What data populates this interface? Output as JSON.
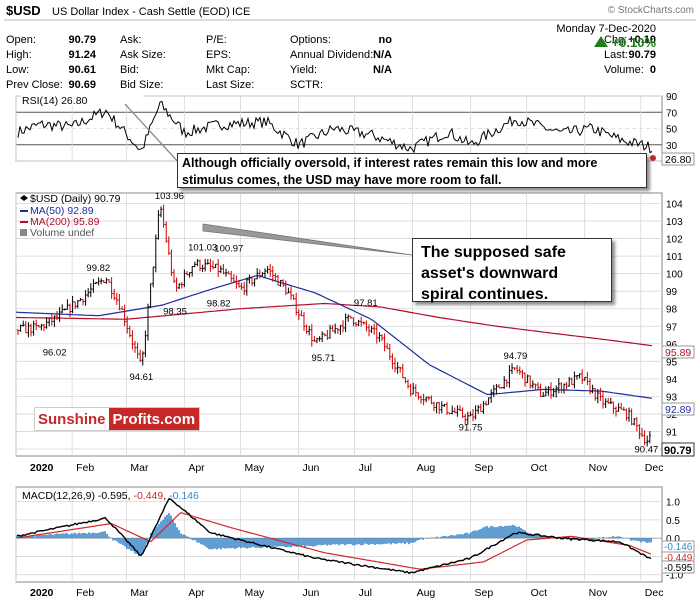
{
  "header": {
    "symbol": "$USD",
    "name": "US Dollar Index - Cash Settle (EOD)",
    "exchange": "ICE",
    "copyright": "© StockCharts.com",
    "date": "Monday  7-Dec-2020",
    "change_pct": "+0.10%",
    "rows": [
      [
        "Open:",
        "90.79",
        "Ask:",
        "",
        "P/E:",
        "",
        "Options:",
        "no",
        "Chg:",
        "+0.10"
      ],
      [
        "High:",
        "91.24",
        "Ask Size:",
        "",
        "EPS:",
        "",
        "Annual Dividend:",
        "N/A",
        "Last:",
        "90.79"
      ],
      [
        "Low:",
        "90.61",
        "Bid:",
        "",
        "Mkt Cap:",
        "",
        "Yield:",
        "N/A",
        "Volume:",
        "0"
      ],
      [
        "Prev Close:",
        "90.69",
        "Bid Size:",
        "",
        "Last Size:",
        "",
        "SCTR:",
        "",
        "",
        ""
      ]
    ]
  },
  "rsi_panel": {
    "label": "RSI(14) 26.80",
    "last_value": "26.80",
    "ticks": [
      "90",
      "70",
      "50",
      "30",
      "10"
    ],
    "levels": [
      70,
      30
    ],
    "callout": "Although officially oversold, if interest rates remain this low and more stimulus comes, the USD may have more room to fall."
  },
  "price_panel": {
    "legend": [
      "$USD (Daily) 90.79",
      "MA(50) 92.89",
      "MA(200) 95.89",
      "Volume undef"
    ],
    "ticks": [
      "104",
      "103",
      "102",
      "101",
      "100",
      "99",
      "98",
      "97",
      "96",
      "95",
      "94",
      "93",
      "92",
      "91",
      "90"
    ],
    "price_annotations": [
      {
        "label": "103.96",
        "value": 103.96
      },
      {
        "label": "101.03",
        "value": 101.03
      },
      {
        "label": "100.97",
        "value": 100.97
      },
      {
        "label": "99.82",
        "value": 99.82
      },
      {
        "label": "98.82",
        "value": 98.82
      },
      {
        "label": "98.35",
        "value": 98.35
      },
      {
        "label": "97.81",
        "value": 97.81
      },
      {
        "label": "96.02",
        "value": 96.02
      },
      {
        "label": "95.71",
        "value": 95.71
      },
      {
        "label": "94.79",
        "value": 94.79
      },
      {
        "label": "94.61",
        "value": 94.61
      },
      {
        "label": "91.75",
        "value": 91.75
      },
      {
        "label": "90.47",
        "value": 90.47
      }
    ],
    "right_labels": {
      "ma200": "95.89",
      "ma50": "92.89",
      "last": "90.79"
    },
    "callout": "The supposed safe asset's downward spiral continues.",
    "logo_left": "Sunshine",
    "logo_right": "Profits.com"
  },
  "macd_panel": {
    "label_prefix": "MACD(12,26,9) -0.595, ",
    "label_signal": "-0.449",
    "label_sep": ", ",
    "label_hist": "-0.146",
    "ticks": [
      "1.0",
      "0.5",
      "0.0",
      "-0.5",
      "-1.0"
    ],
    "right_labels": {
      "hist": "-0.146",
      "signal": "-0.449",
      "macd": "-0.595"
    }
  },
  "x_axis": {
    "labels": [
      "2020",
      "Feb",
      "Mar",
      "Apr",
      "May",
      "Jun",
      "Jul",
      "Aug",
      "Sep",
      "Oct",
      "Nov",
      "Dec"
    ]
  },
  "colors": {
    "price_up": "#000000",
    "price_down": "#cc0000",
    "ma50": "#1f2f9a",
    "ma200": "#b0102a",
    "rsi_line": "#000000",
    "macd_line": "#000000",
    "signal_line": "#d4262a",
    "histogram": "#3a86c8",
    "positive": "#1a7f1a",
    "grid": "#d7d7d7"
  },
  "chart_data": [
    {
      "type": "line",
      "title": "RSI(14) 26.80",
      "ylim": [
        10,
        90
      ],
      "series": [
        {
          "name": "RSI(14)",
          "x": [
            "2020-01-02",
            "2020-01-15",
            "2020-02-01",
            "2020-02-19",
            "2020-03-09",
            "2020-03-19",
            "2020-04-01",
            "2020-04-20",
            "2020-05-15",
            "2020-06-01",
            "2020-06-20",
            "2020-07-10",
            "2020-07-31",
            "2020-08-20",
            "2020-09-01",
            "2020-09-25",
            "2020-10-20",
            "2020-11-05",
            "2020-11-20",
            "2020-12-07"
          ],
          "values": [
            45,
            55,
            52,
            72,
            22,
            80,
            45,
            55,
            58,
            30,
            50,
            42,
            25,
            46,
            30,
            62,
            44,
            50,
            36,
            26.8
          ]
        }
      ]
    },
    {
      "type": "bar",
      "title": "$USD (Daily) 90.79",
      "ylim": [
        90,
        104.5
      ],
      "series": [
        {
          "name": "$USD (Daily)",
          "x": [
            "2020-01-02",
            "2020-01-14",
            "2020-01-24",
            "2020-02-05",
            "2020-02-19",
            "2020-02-27",
            "2020-03-09",
            "2020-03-19",
            "2020-03-27",
            "2020-04-06",
            "2020-04-20",
            "2020-05-01",
            "2020-05-15",
            "2020-05-26",
            "2020-06-10",
            "2020-06-29",
            "2020-07-14",
            "2020-07-31",
            "2020-08-18",
            "2020-09-01",
            "2020-09-25",
            "2020-10-09",
            "2020-10-30",
            "2020-11-10",
            "2020-11-24",
            "2020-12-04",
            "2020-12-07"
          ],
          "values": [
            96.8,
            96.9,
            97.5,
            98.5,
            99.8,
            98.1,
            94.61,
            103.96,
            99.0,
            100.6,
            100.2,
            99.1,
            100.3,
            99.0,
            96.0,
            97.5,
            96.4,
            93.4,
            92.3,
            91.75,
            94.6,
            93.1,
            94.1,
            92.7,
            92.0,
            90.47,
            90.79
          ]
        },
        {
          "name": "MA(50)",
          "x": [
            "2020-01-02",
            "2020-02-15",
            "2020-03-20",
            "2020-04-15",
            "2020-05-10",
            "2020-06-10",
            "2020-07-10",
            "2020-08-10",
            "2020-09-10",
            "2020-10-10",
            "2020-11-10",
            "2020-12-07"
          ],
          "values": [
            97.8,
            97.6,
            98.2,
            99.1,
            99.9,
            98.9,
            97.4,
            94.8,
            93.1,
            93.4,
            93.3,
            92.89
          ]
        },
        {
          "name": "MA(200)",
          "x": [
            "2020-01-02",
            "2020-03-01",
            "2020-05-01",
            "2020-06-15",
            "2020-07-15",
            "2020-08-15",
            "2020-09-15",
            "2020-10-15",
            "2020-11-15",
            "2020-12-07"
          ],
          "values": [
            97.5,
            97.4,
            98.0,
            98.3,
            98.1,
            97.5,
            97.0,
            96.6,
            96.2,
            95.89
          ]
        }
      ]
    },
    {
      "type": "line",
      "title": "MACD(12,26,9) -0.595, -0.449, -0.146",
      "ylim": [
        -1.2,
        1.4
      ],
      "series": [
        {
          "name": "MACD",
          "x": [
            "2020-01-02",
            "2020-02-19",
            "2020-03-09",
            "2020-03-24",
            "2020-04-15",
            "2020-06-10",
            "2020-07-31",
            "2020-09-01",
            "2020-09-25",
            "2020-10-20",
            "2020-11-20",
            "2020-12-07"
          ],
          "values": [
            0.05,
            0.55,
            -0.5,
            1.1,
            0.15,
            -0.55,
            -0.95,
            -0.55,
            0.15,
            0.0,
            -0.1,
            -0.595
          ]
        },
        {
          "name": "Signal",
          "x": [
            "2020-01-02",
            "2020-02-22",
            "2020-03-14",
            "2020-03-30",
            "2020-04-25",
            "2020-06-15",
            "2020-08-05",
            "2020-09-08",
            "2020-10-01",
            "2020-10-25",
            "2020-11-25",
            "2020-12-07"
          ],
          "values": [
            0.0,
            0.4,
            -0.1,
            0.7,
            0.3,
            -0.4,
            -0.85,
            -0.65,
            -0.05,
            0.05,
            -0.2,
            -0.449
          ]
        }
      ]
    }
  ]
}
